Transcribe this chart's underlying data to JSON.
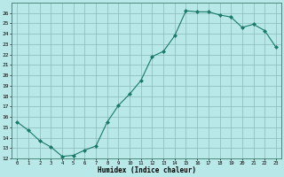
{
  "x": [
    0,
    1,
    2,
    3,
    4,
    5,
    6,
    7,
    8,
    9,
    10,
    11,
    12,
    13,
    14,
    15,
    16,
    17,
    18,
    19,
    20,
    21,
    22,
    23
  ],
  "y": [
    15.5,
    14.7,
    13.7,
    13.1,
    12.2,
    12.3,
    12.8,
    13.2,
    15.5,
    17.1,
    18.2,
    19.5,
    21.8,
    22.3,
    23.8,
    26.2,
    26.1,
    26.1,
    25.8,
    25.6,
    24.6,
    24.9,
    24.3,
    22.7
  ],
  "xlabel": "Humidex (Indice chaleur)",
  "xlim": [
    -0.5,
    23.5
  ],
  "ylim": [
    12,
    27
  ],
  "yticks": [
    12,
    13,
    14,
    15,
    16,
    17,
    18,
    19,
    20,
    21,
    22,
    23,
    24,
    25,
    26
  ],
  "xticks": [
    0,
    1,
    2,
    3,
    4,
    5,
    6,
    7,
    8,
    9,
    10,
    11,
    12,
    13,
    14,
    15,
    16,
    17,
    18,
    19,
    20,
    21,
    22,
    23
  ],
  "line_color": "#1a7a6a",
  "marker_color": "#1a7a6a",
  "bg_color": "#b8e8e8",
  "grid_color": "#8ababa",
  "spine_color": "#4a8a7a"
}
